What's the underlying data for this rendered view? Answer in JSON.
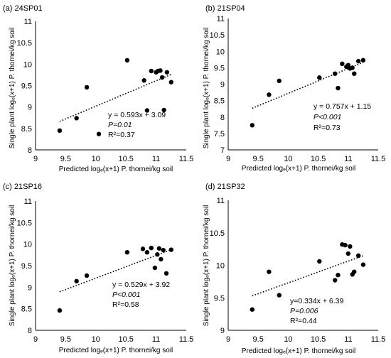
{
  "chart_data": [
    {
      "type": "scatter",
      "title": "(a) 24SP01",
      "xlabel": "Predicted logₑ(x+1) P. thornei/kg soil",
      "ylabel": "Single plant logₑ(x+1) P. thornei/kg soil",
      "xlim": [
        9,
        11.5
      ],
      "ylim": [
        8,
        11
      ],
      "xticks": [
        "9",
        "9.5",
        "10",
        "10.5",
        "11",
        "11.5"
      ],
      "yticks": [
        "8",
        "8.5",
        "9",
        "9.5",
        "10",
        "10.5",
        "11"
      ],
      "x": [
        9.4,
        9.68,
        9.85,
        10.05,
        10.52,
        10.8,
        10.85,
        10.92,
        11.0,
        11.03,
        11.07,
        11.1,
        11.13,
        11.18,
        11.25
      ],
      "y": [
        8.45,
        8.74,
        9.46,
        8.37,
        10.09,
        9.62,
        8.92,
        9.84,
        9.81,
        9.84,
        9.85,
        9.69,
        8.93,
        9.81,
        9.58
      ],
      "trendline": {
        "slope": 0.593,
        "intercept": 3.09,
        "style": "dotted"
      },
      "equation": "y = 0.593x + 3.09",
      "p_value": "P=0.01",
      "r_squared": "R²=0.37",
      "grid": false,
      "legend": "none"
    },
    {
      "type": "scatter",
      "title": "(b) 21SP04",
      "xlabel": "Predicted logₑ(x+1) P. thornei/kg soil",
      "ylabel": "Single plant logₑ(x+1) P. thornei/kg soil",
      "xlim": [
        9,
        11.5
      ],
      "ylim": [
        7,
        11
      ],
      "xticks": [
        "9",
        "9.5",
        "10",
        "10.5",
        "11",
        "11.5"
      ],
      "yticks": [
        "7",
        "7.5",
        "8",
        "8.5",
        "9",
        "9.5",
        "10",
        "10.5",
        "11"
      ],
      "x": [
        9.4,
        9.68,
        9.85,
        10.52,
        10.78,
        10.83,
        10.9,
        10.97,
        11.0,
        11.03,
        11.07,
        11.1,
        11.17,
        11.25
      ],
      "y": [
        7.75,
        8.68,
        9.1,
        9.2,
        9.32,
        8.88,
        9.62,
        9.53,
        9.58,
        9.48,
        9.5,
        9.32,
        9.7,
        9.73
      ],
      "trendline": {
        "slope": 0.757,
        "intercept": 1.15,
        "style": "dotted"
      },
      "equation": "y = 0.757x + 1.15",
      "p_value": "P<0.001",
      "r_squared": "R²=0.73",
      "grid": false,
      "legend": "none"
    },
    {
      "type": "scatter",
      "title": "(c) 21SP16",
      "xlabel": "Predicted logₑ(x+1) P. thornei/kg soil",
      "ylabel": "Single plant logₑ(x+1) P. thornei/kg soil",
      "xlim": [
        9,
        11.5
      ],
      "ylim": [
        8,
        11
      ],
      "xticks": [
        "9",
        "9.5",
        "10",
        "10.5",
        "11",
        "11.5"
      ],
      "yticks": [
        "8",
        "8.5",
        "9",
        "9.5",
        "10",
        "10.5",
        "11"
      ],
      "x": [
        9.4,
        9.68,
        9.85,
        10.52,
        10.78,
        10.85,
        10.92,
        10.98,
        11.02,
        11.05,
        11.08,
        11.12,
        11.17,
        11.25
      ],
      "y": [
        8.46,
        9.14,
        9.27,
        9.81,
        9.89,
        9.81,
        9.91,
        9.45,
        9.76,
        9.9,
        9.65,
        9.86,
        9.32,
        9.87
      ],
      "trendline": {
        "slope": 0.529,
        "intercept": 3.92,
        "style": "dotted"
      },
      "equation": "y = 0.529x + 3.92",
      "p_value": "P<0.001",
      "r_squared": "R²=0.58",
      "grid": false,
      "legend": "none"
    },
    {
      "type": "scatter",
      "title": "(d) 21SP32",
      "xlabel": "Predicted logₑ(x+1) P. thornei/kg soil",
      "ylabel": "Single plant logₑ(x+1) P. thornei/kg soil",
      "xlim": [
        9,
        11.5
      ],
      "ylim": [
        9,
        11
      ],
      "xticks": [
        "9",
        "9.5",
        "10",
        "10.5",
        "11",
        "11.5"
      ],
      "yticks": [
        "9",
        "9.5",
        "10",
        "10.5",
        "11"
      ],
      "x": [
        9.4,
        9.68,
        9.85,
        10.52,
        10.78,
        10.83,
        10.9,
        10.95,
        11.0,
        11.03,
        11.07,
        11.1,
        11.17,
        11.25
      ],
      "y": [
        9.32,
        9.9,
        9.54,
        10.06,
        9.77,
        9.85,
        10.32,
        10.31,
        10.18,
        10.29,
        9.86,
        9.9,
        10.15,
        10.01
      ],
      "trendline": {
        "slope": 0.334,
        "intercept": 6.39,
        "style": "dotted"
      },
      "equation": "y=0.334x + 6.39",
      "p_value": "P=0.006",
      "r_squared": "R²=0.44",
      "grid": false,
      "legend": "none"
    }
  ]
}
